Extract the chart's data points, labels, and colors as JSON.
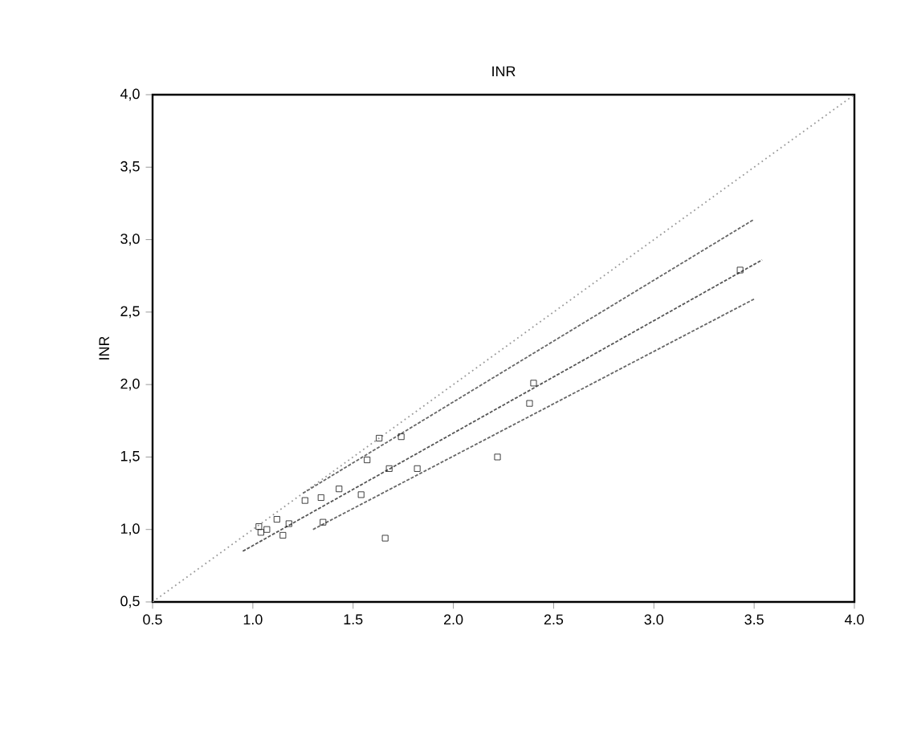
{
  "chart_data": {
    "type": "scatter",
    "title": "INR",
    "ylabel": "INR",
    "xlim": [
      0.5,
      4.0
    ],
    "ylim": [
      0.5,
      4.0
    ],
    "xticks": [
      {
        "value": 0.5,
        "label": "0.5"
      },
      {
        "value": 1.0,
        "label": "1.0"
      },
      {
        "value": 1.5,
        "label": "1.5"
      },
      {
        "value": 2.0,
        "label": "2.0"
      },
      {
        "value": 2.5,
        "label": "2.5"
      },
      {
        "value": 3.0,
        "label": "3.0"
      },
      {
        "value": 3.5,
        "label": "3.5"
      },
      {
        "value": 4.0,
        "label": "4.0"
      }
    ],
    "yticks": [
      {
        "value": 0.5,
        "label": "0,5"
      },
      {
        "value": 1.0,
        "label": "1,0"
      },
      {
        "value": 1.5,
        "label": "1,5"
      },
      {
        "value": 2.0,
        "label": "2,0"
      },
      {
        "value": 2.5,
        "label": "2,5"
      },
      {
        "value": 3.0,
        "label": "3,0"
      },
      {
        "value": 3.5,
        "label": "3,5"
      },
      {
        "value": 4.0,
        "label": "4,0"
      }
    ],
    "series": [
      {
        "type": "line",
        "color": "#999999",
        "line_style": "dotted",
        "marker": "none",
        "x": [
          0.5,
          4.0
        ],
        "values": [
          0.5,
          4.0
        ]
      },
      {
        "type": "line",
        "color": "#666666",
        "line_style": "dashed",
        "marker": "none",
        "x": [
          1.25,
          3.5
        ],
        "values": [
          1.25,
          3.14
        ]
      },
      {
        "type": "line",
        "color": "#555555",
        "line_style": "dashed",
        "marker": "none",
        "x": [
          0.95,
          3.54
        ],
        "values": [
          0.85,
          2.86
        ]
      },
      {
        "type": "line",
        "color": "#666666",
        "line_style": "dashed",
        "marker": "none",
        "x": [
          1.3,
          3.5
        ],
        "values": [
          1.0,
          2.59
        ]
      },
      {
        "color": "#111111",
        "marker": "square",
        "x": [
          1.63,
          1.74,
          1.57,
          1.68,
          1.82,
          1.54,
          1.43,
          1.34,
          1.26,
          1.35,
          1.18,
          1.12,
          1.07,
          1.04,
          1.15,
          1.66,
          2.22,
          2.38,
          2.4,
          3.43,
          1.03
        ],
        "values": [
          1.63,
          1.64,
          1.48,
          1.42,
          1.42,
          1.24,
          1.28,
          1.22,
          1.2,
          1.05,
          1.04,
          1.07,
          1.0,
          0.98,
          0.96,
          0.94,
          1.5,
          1.87,
          2.01,
          2.79,
          1.02
        ]
      }
    ]
  }
}
